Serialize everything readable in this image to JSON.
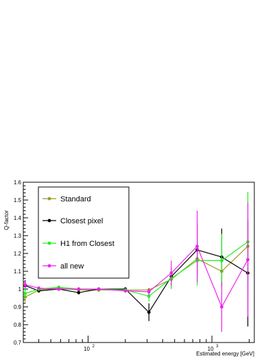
{
  "chart_data": {
    "type": "line",
    "title": "",
    "xlabel": "Estimated energy [GeV]",
    "ylabel": "Q-factor",
    "x_scale": "log",
    "xlim": [
      30,
      2200
    ],
    "ylim": [
      0.7,
      1.6
    ],
    "grid": false,
    "legend_position": "top-left",
    "y_ticks": [
      "0.7",
      "0.8",
      "0.9",
      "1",
      "1.1",
      "1.2",
      "1.3",
      "1.4",
      "1.5",
      "1.6"
    ],
    "x_ticks": [
      {
        "value": 100,
        "label": "10",
        "exp": "2"
      },
      {
        "value": 1000,
        "label": "10",
        "exp": "3"
      }
    ],
    "series": [
      {
        "name": "Standard",
        "color": "#9a9a22",
        "points": [
          {
            "x": 31,
            "y": 0.955,
            "err": 0.03
          },
          {
            "x": 40,
            "y": 0.995,
            "err": 0.01
          },
          {
            "x": 58,
            "y": 1.005,
            "err": 0.01
          },
          {
            "x": 84,
            "y": 0.995,
            "err": 0.01
          },
          {
            "x": 122,
            "y": 0.995,
            "err": 0.01
          },
          {
            "x": 200,
            "y": 0.995,
            "err": 0.01
          },
          {
            "x": 310,
            "y": 0.995,
            "err": 0.01
          },
          {
            "x": 470,
            "y": 1.055,
            "err": 0.05
          },
          {
            "x": 760,
            "y": 1.17,
            "err": 0.09
          },
          {
            "x": 1200,
            "y": 1.1,
            "err": 0.09
          },
          {
            "x": 1950,
            "y": 1.24,
            "err": 0.15
          }
        ]
      },
      {
        "name": "Closest pixel",
        "color": "#000000",
        "points": [
          {
            "x": 31,
            "y": 1.02,
            "err": 0.03
          },
          {
            "x": 40,
            "y": 0.99,
            "err": 0.01
          },
          {
            "x": 58,
            "y": 1.0,
            "err": 0.01
          },
          {
            "x": 84,
            "y": 0.98,
            "err": 0.01
          },
          {
            "x": 122,
            "y": 1.0,
            "err": 0.01
          },
          {
            "x": 200,
            "y": 1.0,
            "err": 0.01
          },
          {
            "x": 310,
            "y": 0.87,
            "err": 0.05
          },
          {
            "x": 470,
            "y": 1.07,
            "err": 0.05
          },
          {
            "x": 760,
            "y": 1.22,
            "err": 0.15
          },
          {
            "x": 1200,
            "y": 1.18,
            "err": 0.16
          },
          {
            "x": 1950,
            "y": 1.09,
            "err": 0.3
          }
        ]
      },
      {
        "name": "H1 from Closest",
        "color": "#22ee22",
        "points": [
          {
            "x": 31,
            "y": 0.975,
            "err": 0.03
          },
          {
            "x": 40,
            "y": 1.0,
            "err": 0.01
          },
          {
            "x": 58,
            "y": 1.01,
            "err": 0.01
          },
          {
            "x": 84,
            "y": 1.0,
            "err": 0.01
          },
          {
            "x": 122,
            "y": 1.0,
            "err": 0.01
          },
          {
            "x": 200,
            "y": 0.995,
            "err": 0.01
          },
          {
            "x": 310,
            "y": 0.96,
            "err": 0.03
          },
          {
            "x": 470,
            "y": 1.06,
            "err": 0.06
          },
          {
            "x": 760,
            "y": 1.16,
            "err": 0.14
          },
          {
            "x": 1200,
            "y": 1.16,
            "err": 0.15
          },
          {
            "x": 1950,
            "y": 1.265,
            "err": 0.28
          }
        ]
      },
      {
        "name": "all new",
        "color": "#ee22ee",
        "points": [
          {
            "x": 31,
            "y": 1.025,
            "err": 0.02
          },
          {
            "x": 40,
            "y": 1.005,
            "err": 0.01
          },
          {
            "x": 58,
            "y": 1.0,
            "err": 0.01
          },
          {
            "x": 84,
            "y": 1.0,
            "err": 0.01
          },
          {
            "x": 122,
            "y": 1.0,
            "err": 0.01
          },
          {
            "x": 200,
            "y": 0.99,
            "err": 0.01
          },
          {
            "x": 310,
            "y": 0.985,
            "err": 0.02
          },
          {
            "x": 470,
            "y": 1.09,
            "err": 0.07
          },
          {
            "x": 760,
            "y": 1.24,
            "err": 0.2
          },
          {
            "x": 1200,
            "y": 0.9,
            "err": 0.14
          },
          {
            "x": 1950,
            "y": 1.165,
            "err": 0.32
          }
        ]
      }
    ]
  }
}
